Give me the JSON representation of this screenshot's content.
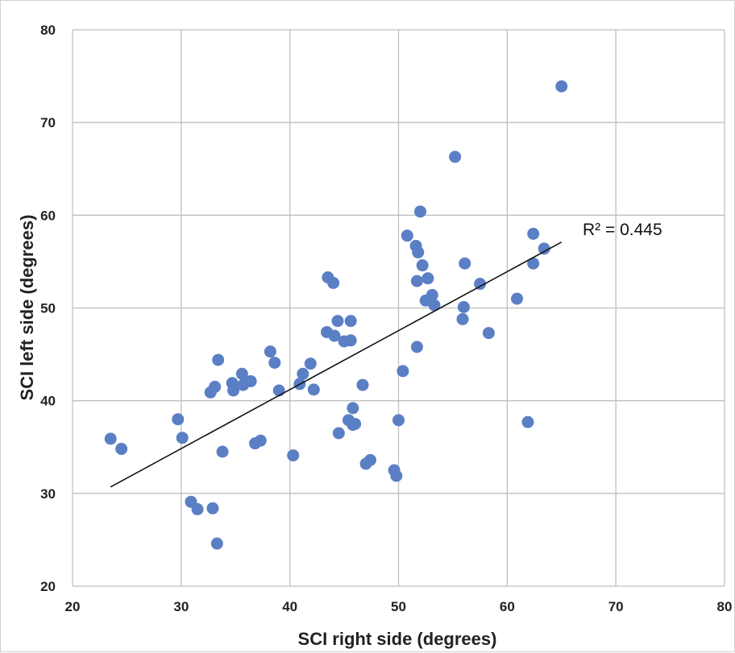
{
  "chart_data": {
    "type": "scatter",
    "title": "",
    "xlabel": "SCI right side (degrees)",
    "ylabel": "SCI left side (degrees)",
    "xlim": [
      20,
      80
    ],
    "ylim": [
      20,
      80
    ],
    "xticks": [
      20,
      30,
      40,
      50,
      60,
      70,
      80
    ],
    "yticks": [
      20,
      30,
      40,
      50,
      60,
      70,
      80
    ],
    "grid": true,
    "legend": "none",
    "marker_color": "#5b7fc4",
    "trendline": {
      "type": "linear",
      "from": [
        23.5,
        30.7
      ],
      "to": [
        65,
        57.1
      ],
      "color": "#111111",
      "label": "R² = 0.445"
    },
    "points": [
      [
        23.5,
        35.9
      ],
      [
        24.5,
        34.8
      ],
      [
        29.7,
        38.0
      ],
      [
        30.1,
        36.0
      ],
      [
        30.9,
        29.1
      ],
      [
        31.5,
        28.3
      ],
      [
        32.7,
        40.9
      ],
      [
        32.9,
        28.4
      ],
      [
        33.1,
        41.5
      ],
      [
        33.3,
        24.6
      ],
      [
        33.4,
        44.4
      ],
      [
        33.8,
        34.5
      ],
      [
        34.7,
        41.9
      ],
      [
        34.8,
        41.1
      ],
      [
        35.6,
        42.9
      ],
      [
        35.7,
        41.7
      ],
      [
        36.4,
        42.1
      ],
      [
        36.8,
        35.4
      ],
      [
        37.3,
        35.7
      ],
      [
        38.2,
        45.3
      ],
      [
        38.6,
        44.1
      ],
      [
        39.0,
        41.1
      ],
      [
        40.3,
        34.1
      ],
      [
        40.9,
        41.8
      ],
      [
        41.2,
        42.9
      ],
      [
        41.9,
        44.0
      ],
      [
        42.2,
        41.2
      ],
      [
        43.4,
        47.4
      ],
      [
        43.5,
        53.3
      ],
      [
        44.0,
        52.7
      ],
      [
        44.1,
        47.0
      ],
      [
        44.4,
        48.6
      ],
      [
        44.5,
        36.5
      ],
      [
        45.0,
        46.4
      ],
      [
        45.4,
        37.9
      ],
      [
        45.6,
        48.6
      ],
      [
        45.6,
        46.5
      ],
      [
        45.8,
        37.4
      ],
      [
        45.8,
        39.2
      ],
      [
        46.0,
        37.5
      ],
      [
        46.7,
        41.7
      ],
      [
        47.0,
        33.2
      ],
      [
        47.4,
        33.6
      ],
      [
        49.6,
        32.5
      ],
      [
        49.8,
        31.9
      ],
      [
        50.0,
        37.9
      ],
      [
        50.4,
        43.2
      ],
      [
        50.8,
        57.8
      ],
      [
        51.6,
        56.7
      ],
      [
        51.7,
        45.8
      ],
      [
        51.7,
        52.9
      ],
      [
        51.8,
        56.0
      ],
      [
        52.0,
        60.4
      ],
      [
        52.2,
        54.6
      ],
      [
        52.5,
        50.8
      ],
      [
        52.7,
        53.2
      ],
      [
        53.1,
        51.4
      ],
      [
        53.3,
        50.3
      ],
      [
        55.2,
        66.3
      ],
      [
        55.9,
        48.8
      ],
      [
        56.0,
        50.1
      ],
      [
        56.1,
        54.8
      ],
      [
        57.5,
        52.6
      ],
      [
        58.3,
        47.3
      ],
      [
        60.9,
        51.0
      ],
      [
        61.9,
        37.7
      ],
      [
        62.4,
        58.0
      ],
      [
        62.4,
        54.8
      ],
      [
        63.4,
        56.4
      ],
      [
        65.0,
        73.9
      ]
    ]
  }
}
